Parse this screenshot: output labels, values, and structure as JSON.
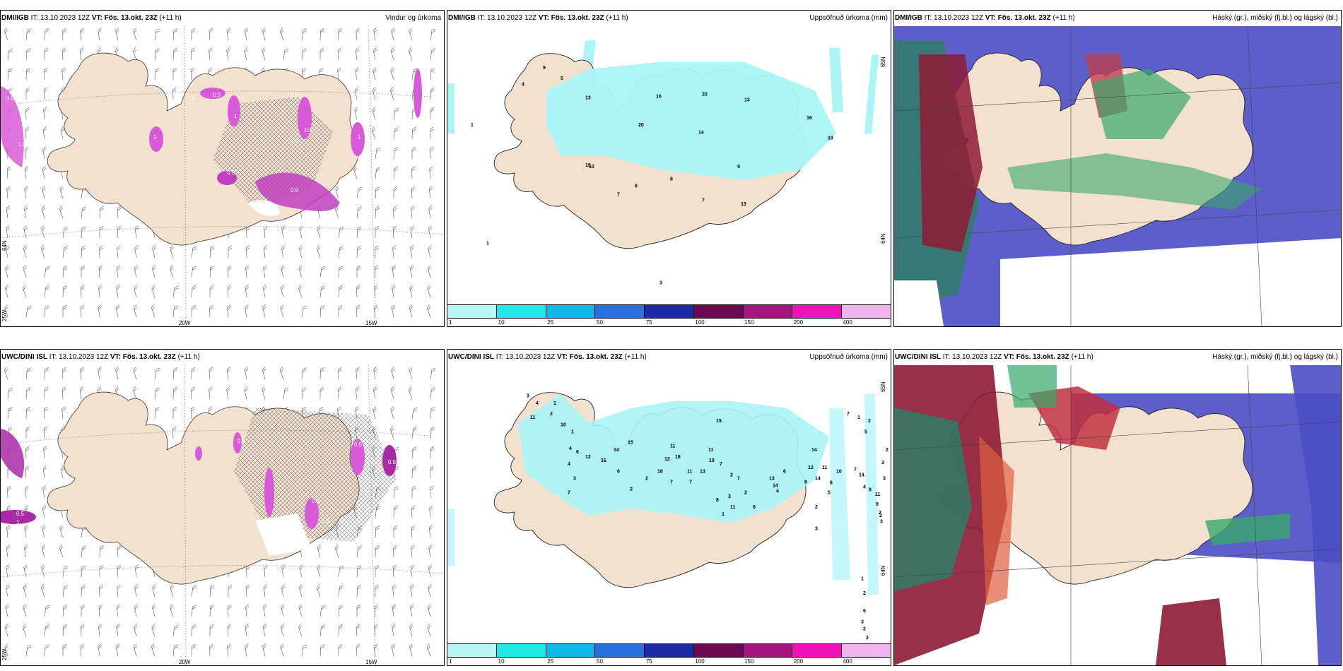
{
  "colors": {
    "land": "#f3e1cf",
    "wind_precip_magenta": "#d85ad8",
    "cloud_blue": "#4a4ec4",
    "cloud_green": "#38a86a",
    "cloud_red": "#8e1a36",
    "precip_light": "#aaf4f6"
  },
  "colorbar": {
    "labels": [
      "1",
      "10",
      "25",
      "50",
      "75",
      "100",
      "150",
      "200",
      "400"
    ],
    "colors": [
      "#b8f6f6",
      "#22e8ea",
      "#10b8e8",
      "#2c70e0",
      "#1c2aa8",
      "#6a0a52",
      "#a8147e",
      "#f014b8",
      "#f0b4f0"
    ]
  },
  "axes": {
    "lon_20w": "20W",
    "lon_15w": "15W",
    "lat_65n": "65N",
    "lat_64n": "64N",
    "lon_25w": "25W"
  },
  "panels": {
    "dmi_wind": {
      "model": "DMI/IGB",
      "init": "IT: 13.10.2023 12Z",
      "valid": "VT: Fös. 13.okt. 23Z",
      "step": "(+11 h)",
      "title": "Vindur og úrkoma",
      "contour_labels": [
        "1.0",
        "1.0",
        "0.5",
        "0.5",
        "0.5",
        "0.5",
        "0.5",
        "1",
        "1",
        "1",
        "1",
        "0.5",
        "0.5",
        "1"
      ]
    },
    "dmi_precip": {
      "model": "DMI/IGB",
      "init": "IT: 13.10.2023 12Z",
      "valid": "VT: Fös. 13.okt. 23Z",
      "step": "(+11 h)",
      "title": "Uppsöfnuð úrkoma (mm)",
      "values": [
        "1",
        "1",
        "4",
        "9",
        "5",
        "13",
        "10",
        "16",
        "20",
        "20",
        "13",
        "14",
        "16",
        "19",
        "10",
        "9",
        "8",
        "6",
        "7",
        "3",
        "7",
        "13"
      ]
    },
    "dmi_cloud": {
      "model": "DMI/IGB",
      "init": "IT: 13.10.2023 12Z",
      "valid": "VT: Fös. 13.okt. 23Z",
      "step": "(+11 h)",
      "title": "Háský (gr.), miðský (fj.bl.) og lágský (bl.)"
    },
    "uwc_wind": {
      "model": "UWC/DINI ISL",
      "init": "IT: 13.10.2023 12Z",
      "valid": "VT: Fös. 13.okt. 23Z",
      "step": "(+11 h)",
      "title": "",
      "contour_labels": [
        "0.5",
        "1",
        "0.5",
        "0.5",
        "0.5",
        "0.5",
        "0.5",
        "0.5"
      ]
    },
    "uwc_precip": {
      "model": "UWC/DINI ISL",
      "init": "IT: 13.10.2023 12Z",
      "valid": "VT: Fös. 13.okt. 23Z",
      "step": "(+11 h)",
      "title": "Uppsöfnuð úrkoma (mm)",
      "values": [
        "3",
        "4",
        "11",
        "1",
        "2",
        "10",
        "1",
        "4",
        "6",
        "4",
        "3",
        "7",
        "12",
        "16",
        "14",
        "15",
        "6",
        "2",
        "2",
        "11",
        "12",
        "18",
        "18",
        "7",
        "11",
        "7",
        "13",
        "10",
        "11",
        "15",
        "7",
        "2",
        "1",
        "8",
        "3",
        "11",
        "7",
        "2",
        "6",
        "13",
        "14",
        "4",
        "6",
        "14",
        "12",
        "14",
        "2",
        "11",
        "6",
        "5",
        "10",
        "8",
        "3",
        "7",
        "1",
        "2",
        "5",
        "7",
        "14",
        "4",
        "8",
        "11",
        "9",
        "2",
        "3",
        "1",
        "2",
        "6",
        "2",
        "3",
        "3",
        "2",
        "3",
        "2",
        "2"
      ]
    },
    "uwc_cloud": {
      "model": "UWC/DINI ISL",
      "init": "IT: 13.10.2023 12Z",
      "valid": "VT: Fös. 13.okt. 23Z",
      "step": "(+11 h)",
      "title": "Háský (gr.), miðský (fj.bl.) og lágský (bl.)"
    }
  }
}
